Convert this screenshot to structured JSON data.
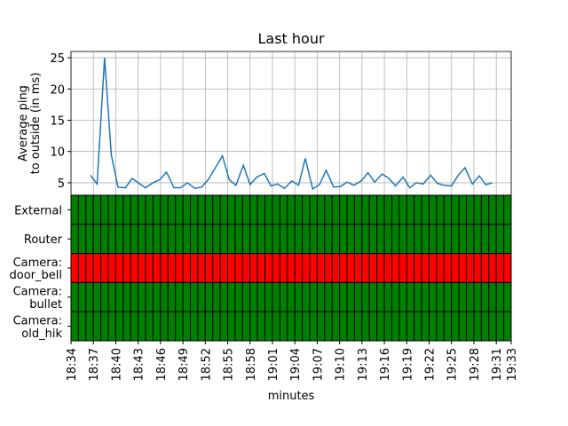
{
  "chart_data": [
    {
      "type": "line",
      "title": "Last hour",
      "y_label": "Average ping\nto outside (in ms)",
      "xlim": [
        0,
        59
      ],
      "xticks": [
        0,
        3,
        6,
        9,
        12,
        15,
        18,
        21,
        24,
        27,
        30,
        33,
        36,
        39,
        42,
        45,
        48,
        51,
        54,
        57,
        59
      ],
      "ylim": [
        3.0,
        26.0
      ],
      "yticks": [
        5,
        10,
        15,
        20,
        25
      ],
      "grid": true,
      "series": [
        {
          "color": "#1f77b4",
          "x": [
            2.6,
            3.5,
            4.5,
            5.4,
            6.3,
            7.3,
            8.2,
            9.1,
            10.0,
            11.0,
            11.9,
            12.8,
            13.8,
            14.7,
            15.6,
            16.6,
            17.5,
            18.4,
            19.3,
            20.3,
            21.2,
            22.1,
            23.1,
            24.0,
            24.9,
            25.9,
            26.8,
            27.7,
            28.6,
            29.6,
            30.5,
            31.4,
            32.4,
            33.3,
            34.2,
            35.2,
            36.1,
            37.0,
            37.9,
            38.9,
            39.8,
            40.7,
            41.7,
            42.6,
            43.5,
            44.5,
            45.4,
            46.3,
            47.2,
            48.2,
            49.1,
            50.0,
            51.0,
            51.9,
            52.8,
            53.8,
            54.7,
            55.6,
            56.5
          ],
          "values": [
            6.2,
            4.8,
            25,
            9.5,
            4.3,
            4.2,
            5.7,
            4.9,
            4.2,
            5.0,
            5.5,
            6.7,
            4.2,
            4.2,
            5.0,
            4.1,
            4.3,
            5.5,
            7.3,
            9.3,
            5.5,
            4.6,
            7.8,
            4.7,
            5.9,
            6.5,
            4.5,
            4.8,
            4.1,
            5.3,
            4.6,
            8.9,
            4.0,
            4.7,
            7.0,
            4.3,
            4.4,
            5.1,
            4.6,
            5.3,
            6.6,
            5.1,
            6.4,
            5.7,
            4.5,
            5.9,
            4.2,
            5.0,
            4.8,
            6.2,
            4.9,
            4.6,
            4.5,
            6.2,
            7.4,
            4.8,
            6.1,
            4.7,
            5.0
          ]
        }
      ]
    },
    {
      "type": "heatmap",
      "x_label": "minutes",
      "xlim": [
        0,
        59
      ],
      "xticks": [
        {
          "value": 0,
          "label": "18:34"
        },
        {
          "value": 3,
          "label": "18:37"
        },
        {
          "value": 6,
          "label": "18:40"
        },
        {
          "value": 9,
          "label": "18:43"
        },
        {
          "value": 12,
          "label": "18:46"
        },
        {
          "value": 15,
          "label": "18:49"
        },
        {
          "value": 18,
          "label": "18:52"
        },
        {
          "value": 21,
          "label": "18:55"
        },
        {
          "value": 24,
          "label": "18:58"
        },
        {
          "value": 27,
          "label": "19:01"
        },
        {
          "value": 30,
          "label": "19:04"
        },
        {
          "value": 33,
          "label": "19:07"
        },
        {
          "value": 36,
          "label": "19:10"
        },
        {
          "value": 39,
          "label": "19:13"
        },
        {
          "value": 42,
          "label": "19:16"
        },
        {
          "value": 45,
          "label": "19:19"
        },
        {
          "value": 48,
          "label": "19:22"
        },
        {
          "value": 51,
          "label": "19:25"
        },
        {
          "value": 54,
          "label": "19:28"
        },
        {
          "value": 57,
          "label": "19:31"
        },
        {
          "value": 59,
          "label": "19:33"
        }
      ],
      "status_colors": {
        "up": "#008000",
        "down": "#ff0000"
      },
      "rows": [
        {
          "name": "External",
          "values": [
            1,
            1,
            1,
            1,
            1,
            1,
            1,
            1,
            1,
            1,
            1,
            1,
            1,
            1,
            1,
            1,
            1,
            1,
            1,
            1,
            1,
            1,
            1,
            1,
            1,
            1,
            1,
            1,
            1,
            1,
            1,
            1,
            1,
            1,
            1,
            1,
            1,
            1,
            1,
            1,
            1,
            1,
            1,
            1,
            1,
            1,
            1,
            1,
            1,
            1,
            1,
            1,
            1,
            1,
            1,
            1,
            1,
            1,
            1
          ]
        },
        {
          "name": "Router",
          "values": [
            1,
            1,
            1,
            1,
            1,
            1,
            1,
            1,
            1,
            1,
            1,
            1,
            1,
            1,
            1,
            1,
            1,
            1,
            1,
            1,
            1,
            1,
            1,
            1,
            1,
            1,
            1,
            1,
            1,
            1,
            1,
            1,
            1,
            1,
            1,
            1,
            1,
            1,
            1,
            1,
            1,
            1,
            1,
            1,
            1,
            1,
            1,
            1,
            1,
            1,
            1,
            1,
            1,
            1,
            1,
            1,
            1,
            1,
            1
          ]
        },
        {
          "name": "Camera:\ndoor_bell",
          "values": [
            0,
            0,
            0,
            0,
            0,
            0,
            0,
            0,
            0,
            0,
            0,
            0,
            0,
            0,
            0,
            0,
            0,
            0,
            0,
            0,
            0,
            0,
            0,
            0,
            0,
            0,
            0,
            0,
            0,
            0,
            0,
            0,
            0,
            0,
            0,
            0,
            0,
            0,
            0,
            0,
            0,
            0,
            0,
            0,
            0,
            0,
            0,
            0,
            0,
            0,
            0,
            0,
            0,
            0,
            0,
            0,
            0,
            0,
            0
          ]
        },
        {
          "name": "Camera:\nbullet",
          "values": [
            1,
            1,
            1,
            1,
            1,
            1,
            1,
            1,
            1,
            1,
            1,
            1,
            1,
            1,
            1,
            1,
            1,
            1,
            1,
            1,
            1,
            1,
            1,
            1,
            1,
            1,
            1,
            1,
            1,
            1,
            1,
            1,
            1,
            1,
            1,
            1,
            1,
            1,
            1,
            1,
            1,
            1,
            1,
            1,
            1,
            1,
            1,
            1,
            1,
            1,
            1,
            1,
            1,
            1,
            1,
            1,
            1,
            1,
            1
          ]
        },
        {
          "name": "Camera:\nold_hik",
          "values": [
            1,
            1,
            1,
            1,
            1,
            1,
            1,
            1,
            1,
            1,
            1,
            1,
            1,
            1,
            1,
            1,
            1,
            1,
            1,
            1,
            1,
            1,
            1,
            1,
            1,
            1,
            1,
            1,
            1,
            1,
            1,
            1,
            1,
            1,
            1,
            1,
            1,
            1,
            1,
            1,
            1,
            1,
            1,
            1,
            1,
            1,
            1,
            1,
            1,
            1,
            1,
            1,
            1,
            1,
            1,
            1,
            1,
            1,
            1
          ]
        }
      ]
    }
  ]
}
